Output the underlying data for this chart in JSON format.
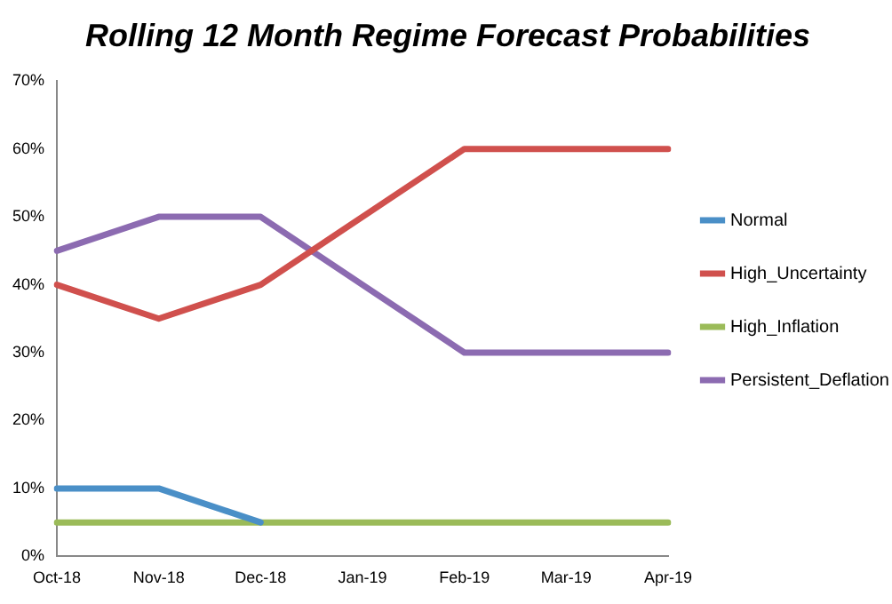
{
  "chart_data": {
    "type": "line",
    "title": "Rolling 12 Month Regime Forecast Probabilities",
    "categories": [
      "Oct-18",
      "Nov-18",
      "Dec-18",
      "Jan-19",
      "Feb-19",
      "Mar-19",
      "Apr-19"
    ],
    "series": [
      {
        "name": "Normal",
        "color": "#4a8fc7",
        "values": [
          10,
          10,
          5,
          null,
          null,
          null,
          null
        ]
      },
      {
        "name": "High_Uncertainty",
        "color": "#d0504d",
        "values": [
          40,
          35,
          40,
          50,
          60,
          60,
          60
        ]
      },
      {
        "name": "High_Inflation",
        "color": "#9bbb59",
        "values": [
          5,
          5,
          5,
          5,
          5,
          5,
          5
        ]
      },
      {
        "name": "Persistent_Deflation",
        "color": "#8c6bb1",
        "values": [
          45,
          50,
          50,
          40,
          30,
          30,
          30
        ]
      }
    ],
    "ylim": [
      0,
      70
    ],
    "yticks": [
      {
        "value": 0,
        "label": "0%"
      },
      {
        "value": 10,
        "label": "10%"
      },
      {
        "value": 20,
        "label": "20%"
      },
      {
        "value": 30,
        "label": "30%"
      },
      {
        "value": 40,
        "label": "40%"
      },
      {
        "value": 50,
        "label": "50%"
      },
      {
        "value": 60,
        "label": "60%"
      },
      {
        "value": 70,
        "label": "70%"
      }
    ],
    "grid": false,
    "legend": "right",
    "marker": "none",
    "line_style": "solid"
  }
}
